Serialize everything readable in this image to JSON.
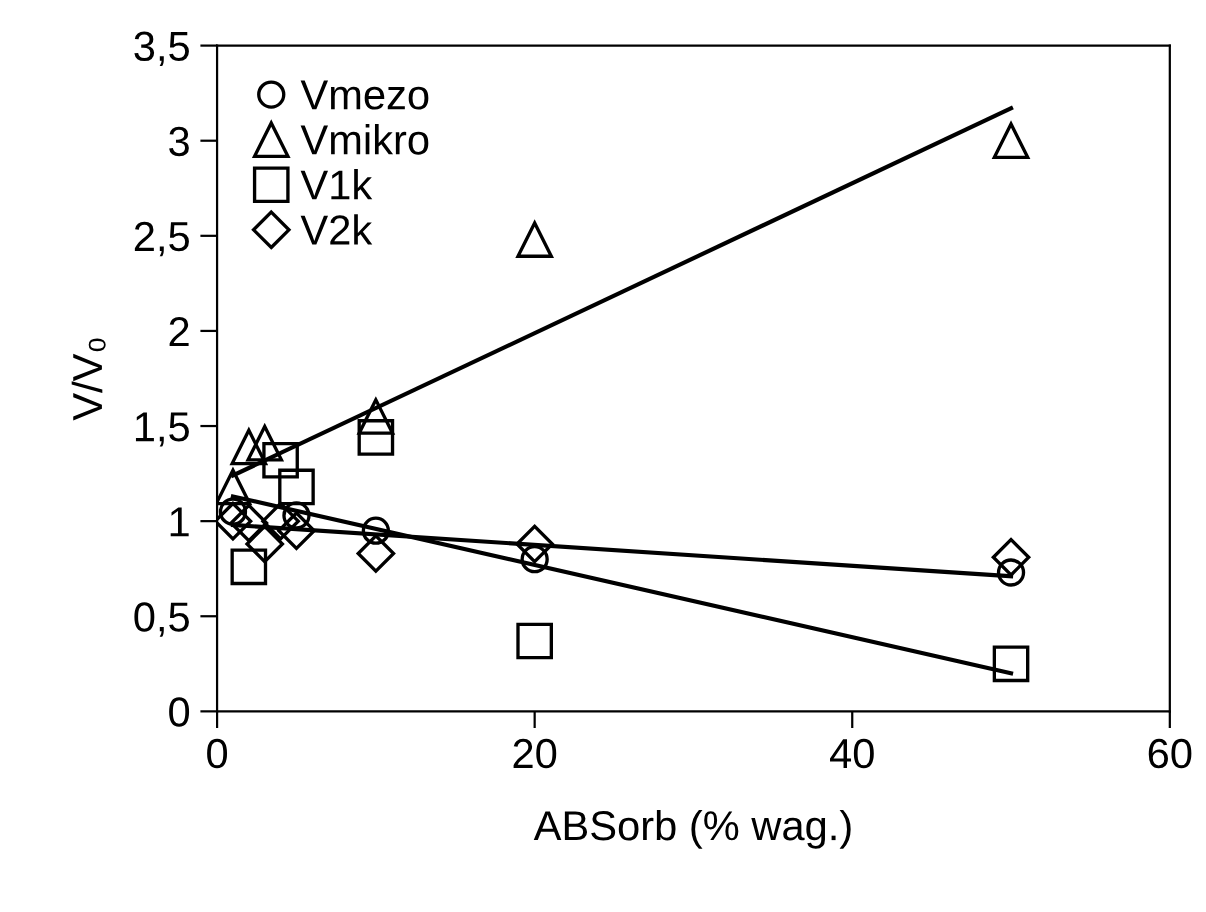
{
  "chart_data": {
    "type": "scatter",
    "xlabel": "ABSorb (% wag.)",
    "ylabel": "V/V₀",
    "xlim": [
      0,
      60
    ],
    "xticks": [
      0,
      20,
      40,
      60
    ],
    "ylim": [
      0,
      3.5
    ],
    "yticks": [
      0,
      {
        "value": 0.5,
        "label": "0,5"
      },
      1,
      {
        "value": 1.5,
        "label": "1,5"
      },
      2,
      {
        "value": 2.5,
        "label": "2,5"
      },
      3,
      {
        "value": 3.5,
        "label": "3,5"
      }
    ],
    "grid": false,
    "legend": "top left",
    "series": [
      {
        "name": "Vmezo",
        "color": "#000000",
        "marker": "circle",
        "x": [
          1,
          5,
          10,
          20,
          50
        ],
        "values": [
          1.05,
          1.03,
          0.95,
          0.8,
          0.73
        ]
      },
      {
        "name": "Vmikro",
        "color": "#000000",
        "marker": "triangle",
        "x": [
          1,
          2,
          3,
          10,
          20,
          50
        ],
        "values": [
          1.18,
          1.39,
          1.41,
          1.55,
          2.48,
          3.0
        ]
      },
      {
        "name": "V1k",
        "color": "#000000",
        "marker": "square",
        "x": [
          2,
          4,
          5,
          10,
          20,
          50
        ],
        "values": [
          0.76,
          1.32,
          1.18,
          1.44,
          0.37,
          0.25
        ]
      },
      {
        "name": "V2k",
        "color": "#000000",
        "marker": "diamond",
        "x": [
          1,
          2,
          3,
          4,
          5,
          10,
          20,
          50
        ],
        "values": [
          1.0,
          0.99,
          0.88,
          1.0,
          0.95,
          0.83,
          0.88,
          0.81
        ]
      },
      {
        "type": "line",
        "color": "#000000",
        "x": [
          1,
          50
        ],
        "values": [
          1.24,
          3.17
        ]
      },
      {
        "type": "line",
        "color": "#000000",
        "x": [
          1,
          50
        ],
        "values": [
          1.13,
          0.2
        ]
      },
      {
        "type": "line",
        "color": "#000000",
        "x": [
          1,
          50
        ],
        "values": [
          0.98,
          0.71
        ]
      }
    ]
  }
}
